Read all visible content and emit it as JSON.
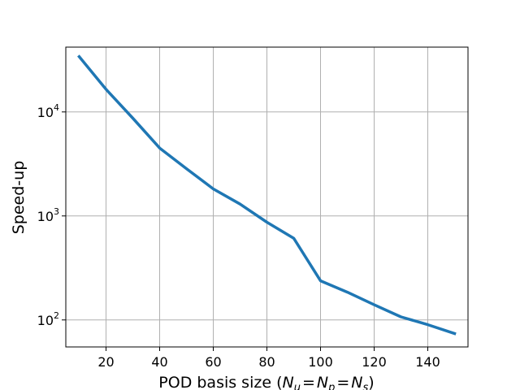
{
  "chart_data": {
    "type": "line",
    "xlabel_prefix": "POD basis size (",
    "xlabel_math": {
      "N": "N",
      "sub_u": "u",
      "sub_p": "p",
      "sub_s": "s",
      "eq": "="
    },
    "xlabel_suffix": ")",
    "ylabel": "Speed-up",
    "y_scale": "log",
    "grid": true,
    "xlim": [
      5,
      155
    ],
    "ylim": [
      55,
      42000
    ],
    "x_ticks": [
      20,
      40,
      60,
      80,
      100,
      120,
      140
    ],
    "x_tick_labels": [
      "20",
      "40",
      "60",
      "80",
      "100",
      "120",
      "140"
    ],
    "y_ticks": [
      100,
      1000,
      10000
    ],
    "y_tick_labels": [
      {
        "base": "10",
        "exp": "2"
      },
      {
        "base": "10",
        "exp": "3"
      },
      {
        "base": "10",
        "exp": "4"
      }
    ],
    "series": [
      {
        "color": "#1f77b4",
        "x": [
          10,
          20,
          30,
          40,
          50,
          60,
          70,
          80,
          90,
          100,
          110,
          120,
          130,
          140,
          150
        ],
        "y": [
          34000,
          16500,
          8700,
          4500,
          2850,
          1820,
          1300,
          870,
          610,
          238,
          185,
          140,
          107,
          90,
          74
        ]
      }
    ]
  }
}
